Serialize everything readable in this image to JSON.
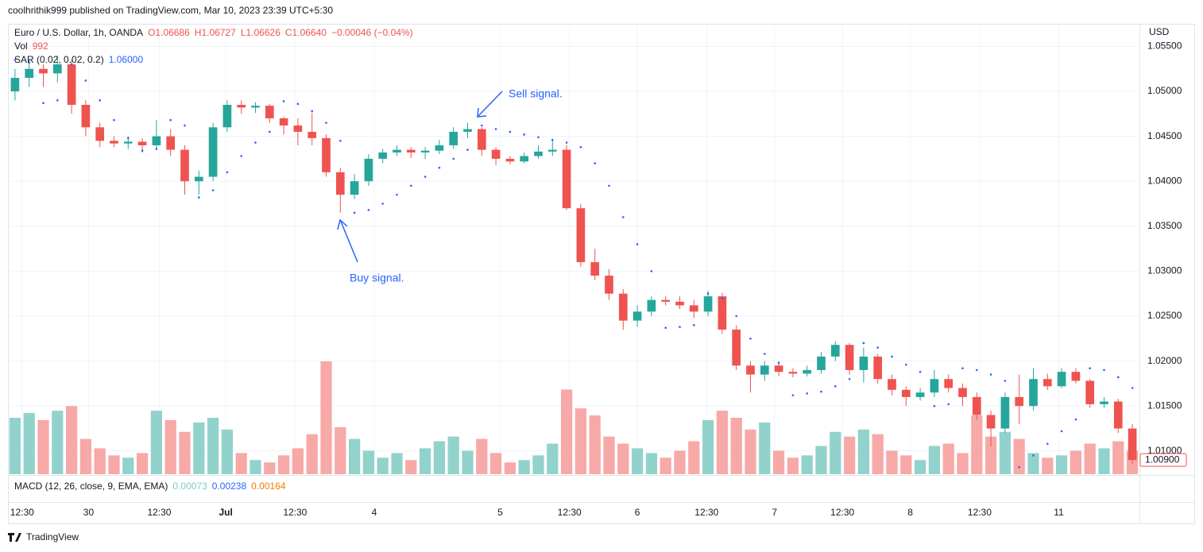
{
  "chart_data": {
    "type": "candlestick",
    "header": "coolhrithik999 published on TradingView.com, Mar 10, 2023 23:39 UTC+5:30",
    "symbol": "Euro / U.S. Dollar, 1h, OANDA",
    "ohlc_legend": [
      "O1.06686",
      "H1.06727",
      "L1.06626",
      "C1.06640",
      "−0.00046 (−0.04%)"
    ],
    "volume_label": "Vol",
    "sar_label": "SAR (0.02, 0.02, 0.2)",
    "sar_value": "1.06000",
    "macd_label": "MACD (12, 26, close, 9, EMA, EMA)",
    "macd_values": [
      {
        "label": "0.00073",
        "color": "#80cbc4"
      },
      {
        "label": "0.00238",
        "color": "#2962ff"
      },
      {
        "label": "0.00164",
        "color": "#f57c00"
      }
    ],
    "currency": "USD",
    "footer": "TradingView",
    "annotations": [
      {
        "text": "Sell signal."
      },
      {
        "text": "Buy signal."
      }
    ],
    "up_color": "#26a69a",
    "down_color": "#ef5350",
    "volume_up_color": "#92d2cc",
    "volume_down_color": "#f7a9a7",
    "sar_color": "#2962ff",
    "grid": true,
    "last_price": {
      "value": 1.009,
      "label": "1.00900"
    },
    "ylim": [
      1.00742,
      1.05751
    ],
    "yticks": [
      {
        "value": 1.055,
        "label": "1.05500"
      },
      {
        "value": 1.05,
        "label": "1.05000"
      },
      {
        "value": 1.045,
        "label": "1.04500"
      },
      {
        "value": 1.04,
        "label": "1.04000"
      },
      {
        "value": 1.035,
        "label": "1.03500"
      },
      {
        "value": 1.03,
        "label": "1.03000"
      },
      {
        "value": 1.025,
        "label": "1.02500"
      },
      {
        "value": 1.02,
        "label": "1.02000"
      },
      {
        "value": 1.015,
        "label": "1.01500"
      },
      {
        "value": 1.01,
        "label": "1.01000"
      }
    ],
    "xlim": [
      -0.5,
      79.5
    ],
    "xticks": [
      {
        "value": 0.5,
        "label": "12:30"
      },
      {
        "value": 5.2,
        "label": "30"
      },
      {
        "value": 10.2,
        "label": "12:30"
      },
      {
        "value": 14.9,
        "label": "Jul"
      },
      {
        "value": 19.8,
        "label": "12:30"
      },
      {
        "value": 25.4,
        "label": "4"
      },
      {
        "value": 34.3,
        "label": "5"
      },
      {
        "value": 39.2,
        "label": "12:30"
      },
      {
        "value": 44,
        "label": "6"
      },
      {
        "value": 48.9,
        "label": "12:30"
      },
      {
        "value": 53.7,
        "label": "7"
      },
      {
        "value": 58.5,
        "label": "12:30"
      },
      {
        "value": 63.3,
        "label": "8"
      },
      {
        "value": 68.2,
        "label": "12:30"
      },
      {
        "value": 73.8,
        "label": "11"
      }
    ],
    "volume_ylim": [
      0,
      4800
    ],
    "candles": [
      [
        1.05,
        1.0525,
        1.049,
        1.0515
      ],
      [
        1.0515,
        1.0535,
        1.0505,
        1.0525
      ],
      [
        1.0525,
        1.053,
        1.0505,
        1.052
      ],
      [
        1.052,
        1.054,
        1.051,
        1.053
      ],
      [
        1.053,
        1.0535,
        1.0475,
        1.0485
      ],
      [
        1.0485,
        1.049,
        1.045,
        1.046
      ],
      [
        1.046,
        1.0465,
        1.0438,
        1.0445
      ],
      [
        1.0445,
        1.045,
        1.0438,
        1.0442
      ],
      [
        1.0442,
        1.045,
        1.0436,
        1.0444
      ],
      [
        1.0444,
        1.0448,
        1.0432,
        1.044
      ],
      [
        1.044,
        1.0468,
        1.0436,
        1.045
      ],
      [
        1.045,
        1.0458,
        1.0428,
        1.0435
      ],
      [
        1.0435,
        1.044,
        1.0385,
        1.04
      ],
      [
        1.04,
        1.0412,
        1.0385,
        1.0405
      ],
      [
        1.0405,
        1.0465,
        1.04,
        1.046
      ],
      [
        1.046,
        1.049,
        1.0455,
        1.0485
      ],
      [
        1.0485,
        1.049,
        1.0475,
        1.0482
      ],
      [
        1.0482,
        1.0488,
        1.0476,
        1.0484
      ],
      [
        1.0484,
        1.0486,
        1.0465,
        1.047
      ],
      [
        1.047,
        1.0472,
        1.0452,
        1.0462
      ],
      [
        1.0462,
        1.047,
        1.044,
        1.0455
      ],
      [
        1.0455,
        1.0476,
        1.044,
        1.0448
      ],
      [
        1.0448,
        1.0452,
        1.0405,
        1.041
      ],
      [
        1.041,
        1.0415,
        1.0365,
        1.0385
      ],
      [
        1.0385,
        1.0408,
        1.038,
        1.04
      ],
      [
        1.04,
        1.043,
        1.0395,
        1.0425
      ],
      [
        1.0425,
        1.0436,
        1.042,
        1.0432
      ],
      [
        1.0432,
        1.044,
        1.0428,
        1.0435
      ],
      [
        1.0435,
        1.0438,
        1.0426,
        1.0432
      ],
      [
        1.0432,
        1.0438,
        1.0425,
        1.0434
      ],
      [
        1.0434,
        1.0446,
        1.043,
        1.044
      ],
      [
        1.044,
        1.046,
        1.0436,
        1.0455
      ],
      [
        1.0455,
        1.0465,
        1.0448,
        1.0458
      ],
      [
        1.0458,
        1.046,
        1.0428,
        1.0435
      ],
      [
        1.0435,
        1.0438,
        1.0418,
        1.0425
      ],
      [
        1.0425,
        1.0428,
        1.0419,
        1.0422
      ],
      [
        1.0422,
        1.0432,
        1.042,
        1.0428
      ],
      [
        1.0428,
        1.044,
        1.0425,
        1.0433
      ],
      [
        1.0433,
        1.0445,
        1.0428,
        1.0435
      ],
      [
        1.0435,
        1.044,
        1.0368,
        1.037
      ],
      [
        1.037,
        1.0375,
        1.0305,
        1.031
      ],
      [
        1.031,
        1.0325,
        1.029,
        1.0295
      ],
      [
        1.0295,
        1.0302,
        1.0268,
        1.0275
      ],
      [
        1.0275,
        1.028,
        1.0235,
        1.0245
      ],
      [
        1.0245,
        1.0262,
        1.0238,
        1.0255
      ],
      [
        1.0255,
        1.0272,
        1.025,
        1.0268
      ],
      [
        1.0268,
        1.0272,
        1.0262,
        1.0266
      ],
      [
        1.0266,
        1.0272,
        1.0258,
        1.0262
      ],
      [
        1.0262,
        1.0268,
        1.0248,
        1.0255
      ],
      [
        1.0255,
        1.0278,
        1.025,
        1.0272
      ],
      [
        1.0272,
        1.0276,
        1.023,
        1.0235
      ],
      [
        1.0235,
        1.024,
        1.019,
        1.0195
      ],
      [
        1.0195,
        1.02,
        1.0165,
        1.0185
      ],
      [
        1.0185,
        1.02,
        1.0178,
        1.0195
      ],
      [
        1.0195,
        1.02,
        1.0183,
        1.0188
      ],
      [
        1.0188,
        1.0192,
        1.0182,
        1.0186
      ],
      [
        1.0186,
        1.0195,
        1.0183,
        1.019
      ],
      [
        1.019,
        1.021,
        1.0186,
        1.0205
      ],
      [
        1.0205,
        1.0222,
        1.02,
        1.0218
      ],
      [
        1.0218,
        1.022,
        1.0185,
        1.019
      ],
      [
        1.019,
        1.0215,
        1.0176,
        1.0205
      ],
      [
        1.0205,
        1.0208,
        1.0175,
        1.018
      ],
      [
        1.018,
        1.0185,
        1.0162,
        1.0168
      ],
      [
        1.0168,
        1.0172,
        1.015,
        1.016
      ],
      [
        1.016,
        1.017,
        1.0156,
        1.0165
      ],
      [
        1.0165,
        1.019,
        1.016,
        1.018
      ],
      [
        1.018,
        1.0185,
        1.0165,
        1.017
      ],
      [
        1.017,
        1.0175,
        1.015,
        1.016
      ],
      [
        1.016,
        1.0165,
        1.0135,
        1.014
      ],
      [
        1.014,
        1.0145,
        1.0105,
        1.0125
      ],
      [
        1.0125,
        1.0165,
        1.012,
        1.016
      ],
      [
        1.016,
        1.0185,
        1.013,
        1.015
      ],
      [
        1.015,
        1.0192,
        1.0145,
        1.018
      ],
      [
        1.018,
        1.0186,
        1.0168,
        1.0172
      ],
      [
        1.0172,
        1.0192,
        1.017,
        1.0188
      ],
      [
        1.0188,
        1.0192,
        1.0175,
        1.0178
      ],
      [
        1.0178,
        1.018,
        1.0148,
        1.0152
      ],
      [
        1.0152,
        1.016,
        1.0148,
        1.0155
      ],
      [
        1.0155,
        1.0158,
        1.012,
        1.0125
      ],
      [
        1.0125,
        1.013,
        1.0085,
        1.009
      ]
    ],
    "volume": [
      2400,
      2600,
      2300,
      2700,
      2900,
      1500,
      1100,
      800,
      700,
      900,
      2700,
      2300,
      1800,
      2200,
      2400,
      1900,
      900,
      600,
      500,
      800,
      1100,
      1700,
      4800,
      2000,
      1500,
      1000,
      700,
      900,
      600,
      1100,
      1400,
      1600,
      1000,
      1500,
      900,
      500,
      600,
      800,
      1300,
      3600,
      2800,
      2500,
      1600,
      1300,
      1100,
      900,
      700,
      1000,
      1400,
      2300,
      2700,
      2400,
      1900,
      2200,
      1000,
      700,
      800,
      1200,
      1800,
      1600,
      1900,
      1700,
      1000,
      800,
      600,
      1200,
      1300,
      900,
      2500,
      1600,
      1800,
      1500,
      900,
      700,
      800,
      1000,
      1300,
      1100,
      1400,
      992
    ],
    "sar": [
      1.0535,
      1.0532,
      1.0487,
      1.049,
      1.053,
      1.0512,
      1.049,
      1.0468,
      1.0448,
      1.0434,
      1.0436,
      1.0468,
      1.0462,
      1.0382,
      1.039,
      1.041,
      1.0428,
      1.0443,
      1.0455,
      1.0489,
      1.0486,
      1.0478,
      1.0465,
      1.0445,
      1.0365,
      1.0368,
      1.0375,
      1.0385,
      1.0395,
      1.0405,
      1.0415,
      1.0425,
      1.0435,
      1.0462,
      1.0458,
      1.0455,
      1.0452,
      1.0449,
      1.0446,
      1.0443,
      1.0438,
      1.042,
      1.0395,
      1.036,
      1.033,
      1.03,
      1.0237,
      1.0238,
      1.024,
      1.0275,
      1.027,
      1.025,
      1.0225,
      1.0208,
      1.0198,
      1.0162,
      1.0164,
      1.0166,
      1.0172,
      1.018,
      1.022,
      1.0215,
      1.0205,
      1.0196,
      1.0188,
      1.015,
      1.0152,
      1.0192,
      1.019,
      1.0185,
      1.0178,
      1.0082,
      1.0095,
      1.0108,
      1.0122,
      1.0135,
      1.0192,
      1.019,
      1.0182,
      1.017
    ]
  }
}
